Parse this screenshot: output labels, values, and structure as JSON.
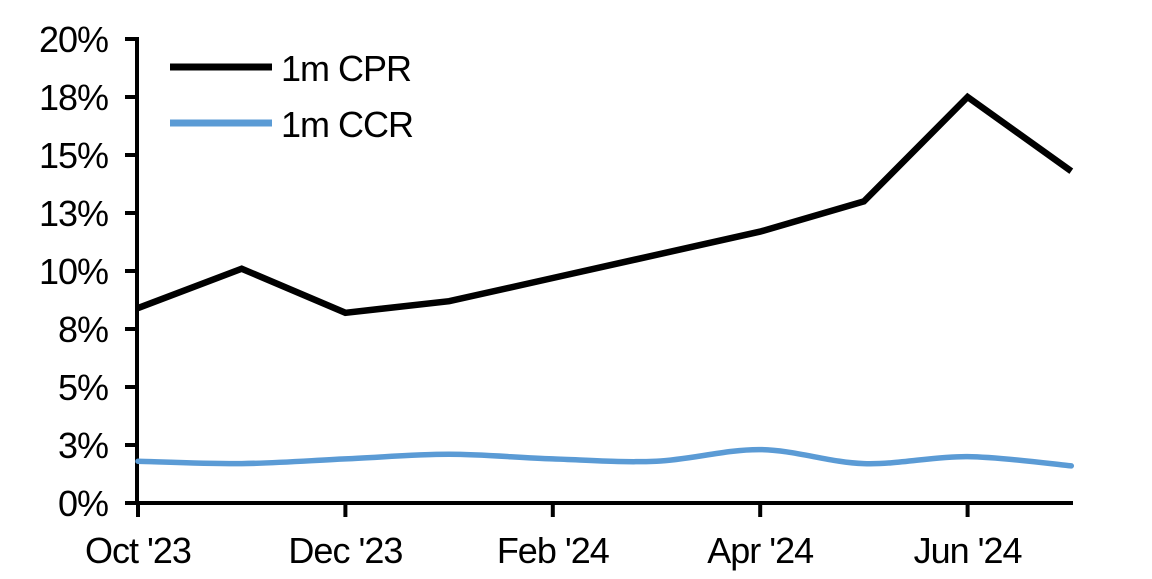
{
  "chart_data": {
    "type": "line",
    "title": "",
    "categories": [
      "Oct '23",
      "Nov '23",
      "Dec '23",
      "Jan '24",
      "Feb '24",
      "Mar '24",
      "Apr '24",
      "May '24",
      "Jun '24",
      "Jul '24"
    ],
    "series": [
      {
        "name": "1m CPR",
        "color": "#000000",
        "stroke_width": 6.5,
        "smooth": false,
        "values": [
          8.4,
          10.1,
          8.2,
          8.7,
          9.7,
          10.7,
          11.7,
          13.0,
          17.5,
          14.3
        ]
      },
      {
        "name": "1m CCR",
        "color": "#5B9BD5",
        "stroke_width": 5.5,
        "smooth": true,
        "values": [
          1.8,
          1.7,
          1.9,
          2.1,
          1.9,
          1.8,
          2.3,
          1.7,
          2.0,
          1.6
        ]
      }
    ],
    "y_axis": {
      "unit": "%",
      "min": 0,
      "max": 20,
      "tick_step": 2.5,
      "tick_values": [
        0,
        2.5,
        5,
        7.5,
        10,
        12.5,
        15,
        17.5,
        20
      ],
      "tick_labels": [
        "0%",
        "3%",
        "5%",
        "8%",
        "10%",
        "13%",
        "15%",
        "18%",
        "20%"
      ]
    },
    "x_axis": {
      "tick_labels": [
        "Oct '23",
        "Dec '23",
        "Feb '24",
        "Apr '24",
        "Jun '24"
      ],
      "tick_month_indices": [
        0,
        2,
        4,
        6,
        8
      ]
    },
    "legend": {
      "position": "top-left",
      "entries": [
        "1m CPR",
        "1m CCR"
      ]
    },
    "grid": false
  }
}
